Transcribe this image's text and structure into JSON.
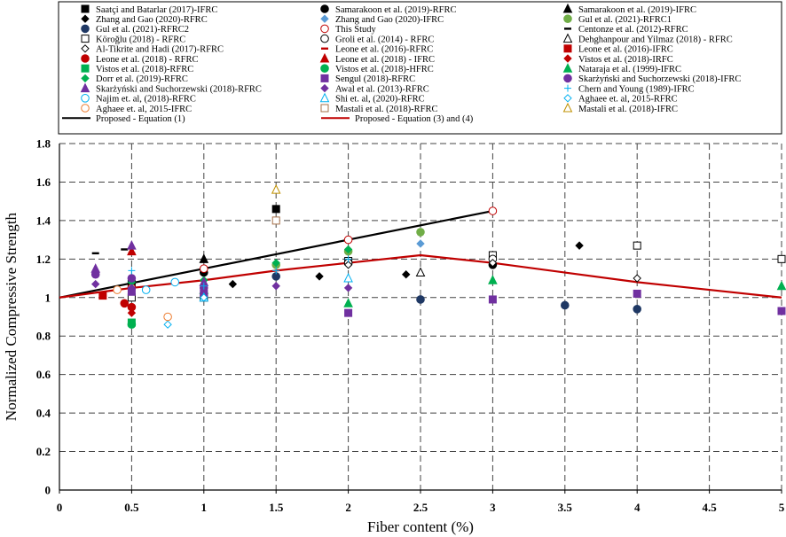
{
  "chart_data": {
    "type": "scatter",
    "title": "",
    "xlabel": "Fiber content (%)",
    "ylabel": "Normalized Compressive Strength",
    "xlim": [
      0,
      5
    ],
    "ylim": [
      0,
      1.8
    ],
    "grid": true,
    "x_ticks": [
      "0",
      "0.5",
      "1",
      "1.5",
      "2",
      "2.5",
      "3",
      "3.5",
      "4",
      "4.5",
      "5"
    ],
    "y_ticks": [
      "0",
      "0.2",
      "0.4",
      "0.6",
      "0.8",
      "1",
      "1.2",
      "1.4",
      "1.6",
      "1.8"
    ],
    "legend_position": "top",
    "series": [
      {
        "name": "Saatçi and Batarlar (2017)-IFRC",
        "marker": "square",
        "color": "#000000",
        "fill": true,
        "points": [
          [
            0.5,
            1.07
          ],
          [
            1.5,
            1.46
          ]
        ]
      },
      {
        "name": "Samarakoon et al. (2019)-RFRC",
        "marker": "circle",
        "color": "#000000",
        "fill": true,
        "points": [
          [
            1,
            1.13
          ],
          [
            3,
            1.17
          ]
        ]
      },
      {
        "name": "Samarakoon et al. (2019)-IFRC",
        "marker": "triangle",
        "color": "#000000",
        "fill": true,
        "points": [
          [
            1,
            1.2
          ]
        ]
      },
      {
        "name": "Zhang and Gao (2020)-RFRC",
        "marker": "diamond",
        "color": "#000000",
        "fill": true,
        "points": [
          [
            1.2,
            1.07
          ],
          [
            1.8,
            1.11
          ],
          [
            2.4,
            1.12
          ],
          [
            3.6,
            1.27
          ]
        ]
      },
      {
        "name": "Zhang and Gao (2020)-IFRC",
        "marker": "diamond",
        "color": "#5b9bd5",
        "fill": true,
        "points": [
          [
            2.5,
            1.28
          ]
        ]
      },
      {
        "name": "Gul et al. (2021)-RFRC1",
        "marker": "circle",
        "color": "#70ad47",
        "fill": true,
        "points": [
          [
            1.5,
            1.17
          ],
          [
            2,
            1.24
          ],
          [
            2.5,
            1.34
          ]
        ]
      },
      {
        "name": "Gul et al. (2021)-RFRC2",
        "marker": "circle",
        "color": "#1f3864",
        "fill": true,
        "points": [
          [
            1.5,
            1.11
          ],
          [
            2.5,
            0.99
          ],
          [
            3.5,
            0.96
          ],
          [
            4,
            0.94
          ]
        ]
      },
      {
        "name": "This Study",
        "marker": "circle",
        "color": "#c00000",
        "fill": false,
        "points": [
          [
            0.5,
            1.05
          ],
          [
            1,
            1.15
          ],
          [
            2,
            1.3
          ],
          [
            3,
            1.45
          ]
        ]
      },
      {
        "name": "Centonze et al. (2012)-RFRC",
        "marker": "dash",
        "color": "#000000",
        "fill": true,
        "points": [
          [
            0.25,
            1.23
          ],
          [
            0.45,
            1.25
          ]
        ]
      },
      {
        "name": "Köroğlu (2018) - RFRC",
        "marker": "square",
        "color": "#000000",
        "fill": false,
        "points": [
          [
            0.5,
            1.0
          ],
          [
            1,
            1.0
          ],
          [
            2,
            1.19
          ],
          [
            3,
            1.22
          ],
          [
            4,
            1.27
          ],
          [
            5,
            1.2
          ]
        ]
      },
      {
        "name": "Groli et al. (2014) - RFRC",
        "marker": "circle",
        "color": "#000000",
        "fill": false,
        "points": [
          [
            2,
            1.18
          ],
          [
            3,
            1.2
          ]
        ]
      },
      {
        "name": "Dehghanpour and Yilmaz (2018) - RFRC",
        "marker": "triangle",
        "color": "#000000",
        "fill": false,
        "points": [
          [
            2.5,
            1.13
          ]
        ]
      },
      {
        "name": "Al-Tikrite and Hadi (2017)-RFRC",
        "marker": "diamond",
        "color": "#000000",
        "fill": false,
        "points": [
          [
            2,
            1.17
          ],
          [
            3,
            1.18
          ],
          [
            4,
            1.1
          ]
        ]
      },
      {
        "name": "Leone et al. (2016)-RFRC",
        "marker": "dash",
        "color": "#c00000",
        "fill": true,
        "points": [
          [
            0.5,
            1.23
          ]
        ]
      },
      {
        "name": "Leone et al. (2016)-IFRC",
        "marker": "square",
        "color": "#c00000",
        "fill": true,
        "points": [
          [
            0.3,
            1.01
          ]
        ]
      },
      {
        "name": "Leone et al. (2018) - RFRC",
        "marker": "circle",
        "color": "#c00000",
        "fill": true,
        "points": [
          [
            0.45,
            0.97
          ],
          [
            0.5,
            0.95
          ]
        ]
      },
      {
        "name": "Leone et al. (2018) - IFRC",
        "marker": "triangle",
        "color": "#c00000",
        "fill": true,
        "points": [
          [
            0.5,
            1.24
          ]
        ]
      },
      {
        "name": "Vistos et al. (2018)-IRFC",
        "marker": "diamond",
        "color": "#c00000",
        "fill": true,
        "points": [
          [
            0.5,
            0.92
          ]
        ]
      },
      {
        "name": "Vistos et al. (2018)-RFRC",
        "marker": "square",
        "color": "#00b050",
        "fill": true,
        "points": [
          [
            0.5,
            0.87
          ]
        ]
      },
      {
        "name": "Vistos et al. (2018)-HFRC",
        "marker": "circle",
        "color": "#00b050",
        "fill": true,
        "points": [
          [
            0.5,
            0.86
          ]
        ]
      },
      {
        "name": "Nataraja et al. (1999)-IFRC",
        "marker": "triangle",
        "color": "#00b050",
        "fill": true,
        "points": [
          [
            1,
            1.04
          ],
          [
            2,
            0.97
          ],
          [
            3,
            1.09
          ],
          [
            5,
            1.06
          ]
        ]
      },
      {
        "name": "Dorr et al. (2019)-RFRC",
        "marker": "diamond",
        "color": "#00b050",
        "fill": true,
        "points": [
          [
            0.5,
            1.08
          ],
          [
            1,
            1.09
          ],
          [
            1.5,
            1.18
          ],
          [
            2,
            1.25
          ]
        ]
      },
      {
        "name": "Sengul (2018)-RFRC",
        "marker": "square",
        "color": "#7030a0",
        "fill": true,
        "points": [
          [
            0.5,
            1.03
          ],
          [
            1,
            1.02
          ],
          [
            2,
            0.92
          ],
          [
            3,
            0.99
          ],
          [
            4,
            1.02
          ],
          [
            5,
            0.93
          ]
        ]
      },
      {
        "name": "Skarżyński and Suchorzewski (2018)-IFRC",
        "marker": "circle",
        "color": "#7030a0",
        "fill": true,
        "points": [
          [
            0.25,
            1.12
          ],
          [
            0.5,
            1.1
          ],
          [
            1,
            1.05
          ]
        ]
      },
      {
        "name": "Skarżyński and Suchorzewski (2018)-RFRC",
        "marker": "triangle",
        "color": "#7030a0",
        "fill": true,
        "points": [
          [
            0.25,
            1.15
          ],
          [
            0.5,
            1.27
          ],
          [
            1,
            1.08
          ]
        ]
      },
      {
        "name": "Awal et al. (2013)-RFRC",
        "marker": "diamond",
        "color": "#7030a0",
        "fill": true,
        "points": [
          [
            0.25,
            1.07
          ],
          [
            0.5,
            1.05
          ],
          [
            1.5,
            1.06
          ],
          [
            2,
            1.05
          ]
        ]
      },
      {
        "name": "Chern and Young (1989)-IFRC",
        "marker": "plus",
        "color": "#00b0f0",
        "fill": true,
        "points": [
          [
            0.5,
            1.14
          ],
          [
            1,
            1.06
          ],
          [
            1.5,
            1.14
          ],
          [
            2,
            1.2
          ]
        ]
      },
      {
        "name": "Najim et. al, (2018)-RFRC",
        "marker": "circle",
        "color": "#00b0f0",
        "fill": false,
        "points": [
          [
            0.6,
            1.04
          ],
          [
            0.8,
            1.08
          ]
        ]
      },
      {
        "name": "Shi et. al, (2020)-RFRC",
        "marker": "triangle",
        "color": "#00b0f0",
        "fill": false,
        "points": [
          [
            1,
            1.0
          ],
          [
            2,
            1.1
          ]
        ]
      },
      {
        "name": "Aghaee et. al, 2015-RFRC",
        "marker": "diamond",
        "color": "#00b0f0",
        "fill": false,
        "points": [
          [
            0.75,
            0.86
          ],
          [
            1,
            1.0
          ]
        ]
      },
      {
        "name": "Aghaee et. al, 2015-IFRC",
        "marker": "circle",
        "color": "#ed7d31",
        "fill": false,
        "points": [
          [
            0.4,
            1.04
          ],
          [
            0.75,
            0.9
          ]
        ]
      },
      {
        "name": "Mastali et al. (2018)-RFRC",
        "marker": "square",
        "color": "#a5704a",
        "fill": false,
        "points": [
          [
            1.5,
            1.4
          ]
        ]
      },
      {
        "name": "Mastali et al. (2018)-IFRC",
        "marker": "triangle",
        "color": "#bf9000",
        "fill": false,
        "points": [
          [
            1.5,
            1.56
          ]
        ]
      }
    ],
    "lines": [
      {
        "name": "Proposed - Equation (1)",
        "color": "#000000",
        "points": [
          [
            0,
            1.0
          ],
          [
            3,
            1.45
          ]
        ]
      },
      {
        "name": "Proposed - Equation (3) and (4)",
        "color": "#c00000",
        "points": [
          [
            0,
            1.0
          ],
          [
            0.5,
            1.05
          ],
          [
            1,
            1.09
          ],
          [
            1.5,
            1.14
          ],
          [
            2,
            1.18
          ],
          [
            2.5,
            1.22
          ],
          [
            3,
            1.18
          ],
          [
            3.5,
            1.13
          ],
          [
            4,
            1.08
          ],
          [
            4.5,
            1.04
          ],
          [
            5,
            1.0
          ]
        ]
      }
    ]
  }
}
